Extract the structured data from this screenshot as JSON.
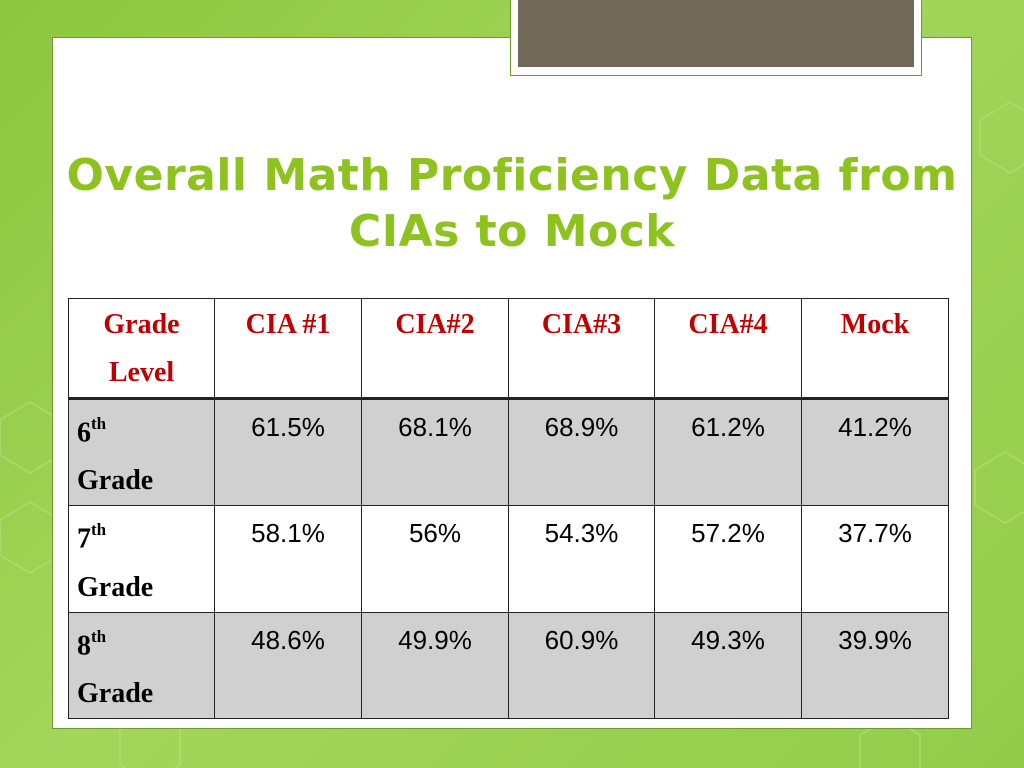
{
  "title_line1": "Overall Math Proficiency Data from",
  "title_line2": "CIAs to Mock",
  "colors": {
    "background": "#8cc63f",
    "title": "#8dc21f",
    "header_text": "#c00000",
    "row_shade": "#d0d0d0",
    "tab_fill": "#706858"
  },
  "table": {
    "headers": [
      "Grade Level",
      "CIA #1",
      "CIA#2",
      "CIA#3",
      "CIA#4",
      "Mock"
    ],
    "header_line1": "Grade",
    "header_line2": "Level",
    "rows": [
      {
        "grade_num": "6",
        "grade_sup": "th",
        "grade_word": "Grade",
        "values": [
          "61.5%",
          "68.1%",
          "68.9%",
          "61.2%",
          "41.2%"
        ]
      },
      {
        "grade_num": "7",
        "grade_sup": "th",
        "grade_word": "Grade",
        "values": [
          "58.1%",
          "56%",
          "54.3%",
          "57.2%",
          "37.7%"
        ]
      },
      {
        "grade_num": "8",
        "grade_sup": "th",
        "grade_word": "Grade",
        "values": [
          "48.6%",
          "49.9%",
          "60.9%",
          "49.3%",
          "39.9%"
        ]
      }
    ]
  }
}
